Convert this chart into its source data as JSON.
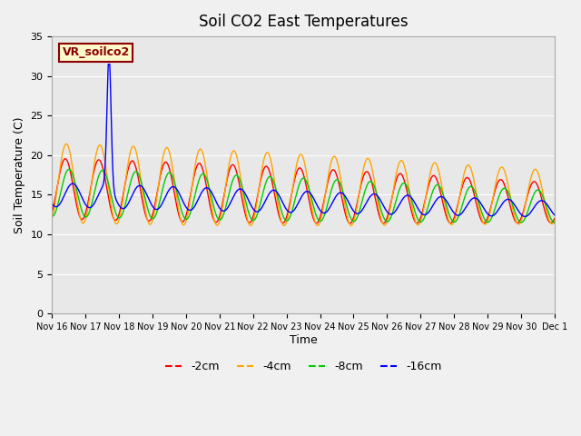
{
  "title": "Soil CO2 East Temperatures",
  "ylabel": "Soil Temperature (C)",
  "xlabel": "Time",
  "ylim": [
    0,
    35
  ],
  "legend_label": "VR_soilco2",
  "line_labels": [
    "-2cm",
    "-4cm",
    "-8cm",
    "-16cm"
  ],
  "line_colors": [
    "#ff0000",
    "#ffa500",
    "#00cc00",
    "#0000ff"
  ],
  "fig_bg": "#f0f0f0",
  "plot_bg": "#e8e8e8",
  "tick_labels": [
    "Nov 16",
    "Nov 17",
    "Nov 18",
    "Nov 19",
    "Nov 20",
    "Nov 21",
    "Nov 22",
    "Nov 23",
    "Nov 24",
    "Nov 25",
    "Nov 26",
    "Nov 27",
    "Nov 28",
    "Nov 29",
    "Nov 30",
    "Dec 1"
  ],
  "yticks": [
    0,
    5,
    10,
    15,
    20,
    25,
    30,
    35
  ]
}
